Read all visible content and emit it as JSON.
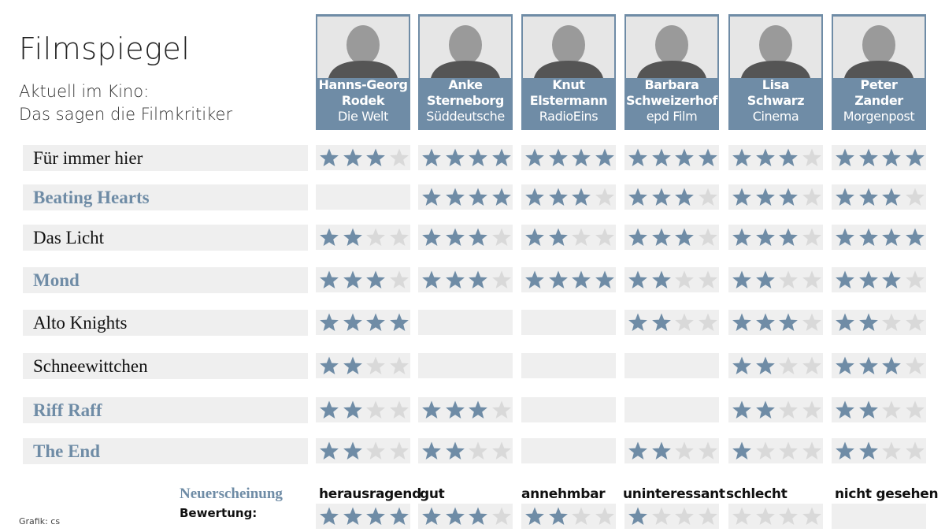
{
  "title": "Filmspiegel",
  "subtitle_line1": "Aktuell im Kino:",
  "subtitle_line2": "Das sagen die Filmkritiker",
  "colors": {
    "accent": "#6f8ca6",
    "star_filled": "#6f8ca6",
    "star_empty": "#d9d9d9",
    "cell_bg": "#efefef"
  },
  "critics": [
    {
      "name_line1": "Hanns-Georg",
      "name_line2": "Rodek",
      "outlet": "Die Welt"
    },
    {
      "name_line1": "Anke",
      "name_line2": "Sterneborg",
      "outlet": "Süddeutsche"
    },
    {
      "name_line1": "Knut",
      "name_line2": "Elstermann",
      "outlet": "RadioEins"
    },
    {
      "name_line1": "Barbara",
      "name_line2": "Schweizerhof",
      "outlet": "epd Film"
    },
    {
      "name_line1": "Lisa",
      "name_line2": "Schwarz",
      "outlet": "Cinema"
    },
    {
      "name_line1": "Peter",
      "name_line2": "Zander",
      "outlet": "Morgenpost"
    }
  ],
  "films": [
    {
      "title": "Für immer hier",
      "new": false,
      "ratings": [
        3,
        4,
        4,
        4,
        3,
        4
      ]
    },
    {
      "title": "Beating Hearts",
      "new": true,
      "ratings": [
        null,
        4,
        3,
        3,
        3,
        3
      ]
    },
    {
      "title": "Das Licht",
      "new": false,
      "ratings": [
        2,
        3,
        2,
        3,
        3,
        4
      ]
    },
    {
      "title": "Mond",
      "new": true,
      "ratings": [
        3,
        3,
        4,
        2,
        2,
        3
      ]
    },
    {
      "title": "Alto Knights",
      "new": false,
      "ratings": [
        4,
        null,
        null,
        2,
        3,
        2
      ]
    },
    {
      "title": "Schneewittchen",
      "new": false,
      "ratings": [
        2,
        null,
        null,
        null,
        2,
        3
      ]
    },
    {
      "title": "Riff Raff",
      "new": true,
      "ratings": [
        2,
        3,
        null,
        null,
        2,
        2
      ]
    },
    {
      "title": "The End",
      "new": true,
      "ratings": [
        2,
        2,
        null,
        2,
        1,
        2
      ]
    }
  ],
  "legend": {
    "new_label": "Neuerscheinung",
    "rating_label": "Bewertung:",
    "items": [
      {
        "label": "herausragend",
        "stars": 4
      },
      {
        "label": "gut",
        "stars": 3
      },
      {
        "label": "annehmbar",
        "stars": 2
      },
      {
        "label": "uninteressant",
        "stars": 1
      },
      {
        "label": "schlecht",
        "stars": 0
      },
      {
        "label": "nicht gesehen",
        "stars": null
      }
    ]
  },
  "credit": "Grafik: cs"
}
